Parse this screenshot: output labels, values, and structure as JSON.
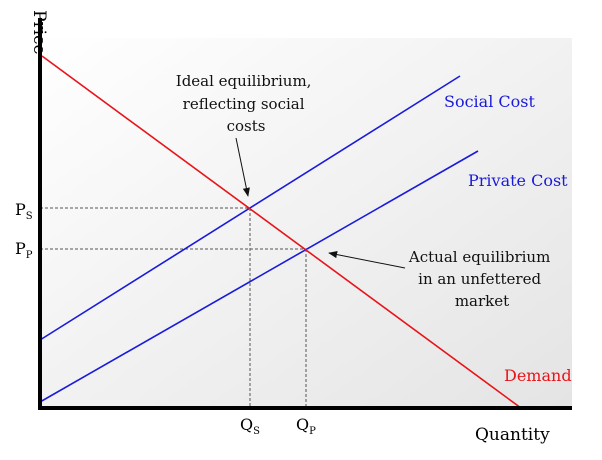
{
  "axes": {
    "y_label": "Price",
    "x_label": "Quantity"
  },
  "curves": {
    "social_cost": {
      "label": "Social Cost",
      "color": "#1a1adb"
    },
    "private_cost": {
      "label": "Private Cost",
      "color": "#1a1adb"
    },
    "demand": {
      "label": "Demand",
      "color": "#e8141a"
    }
  },
  "ticks": {
    "ps": {
      "main": "P",
      "sub": "S"
    },
    "pp": {
      "main": "P",
      "sub": "P"
    },
    "qs": {
      "main": "Q",
      "sub": "S"
    },
    "qp": {
      "main": "Q",
      "sub": "P"
    }
  },
  "annotations": {
    "ideal": [
      "Ideal equilibrium,",
      "reflecting social",
      "costs"
    ],
    "actual": [
      "Actual equilibrium",
      "in an unfettered",
      "market"
    ]
  },
  "colors": {
    "axis": "#000000",
    "guide": "#555555",
    "plot_bg_top": "#ffffff",
    "plot_bg_bottom": "#e6e6e6"
  }
}
